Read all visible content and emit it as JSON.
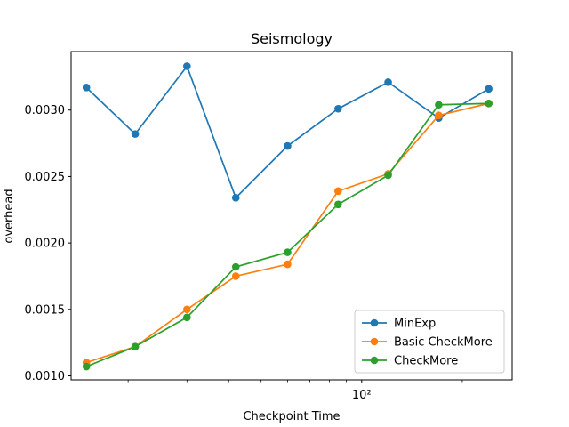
{
  "chart_data": {
    "type": "line",
    "title": "Seismology",
    "xlabel": "Checkpoint Time",
    "ylabel": "overhead",
    "x_scale": "log",
    "xlim": [
      13.5,
      282
    ],
    "ylim": [
      0.00097,
      0.00344
    ],
    "x": [
      15,
      21,
      30,
      42,
      60,
      85,
      120,
      170,
      240
    ],
    "y_ticks": [
      "0.0010",
      "0.0015",
      "0.0020",
      "0.0025",
      "0.0030"
    ],
    "y_tick_values": [
      0.001,
      0.0015,
      0.002,
      0.0025,
      0.003
    ],
    "x_major_ticks": [
      100
    ],
    "x_major_tick_labels": [
      "10²"
    ],
    "x_minor_ticks": [
      20,
      30,
      40,
      50,
      60,
      70,
      80,
      90,
      200
    ],
    "grid": false,
    "legend_position": "lower-right",
    "series": [
      {
        "name": "MinExp",
        "color": "#1f77b4",
        "values": [
          0.00317,
          0.00282,
          0.00333,
          0.00234,
          0.00273,
          0.00301,
          0.00321,
          0.00294,
          0.00316
        ]
      },
      {
        "name": "Basic CheckMore",
        "color": "#ff7f0e",
        "values": [
          0.0011,
          0.00122,
          0.0015,
          0.00175,
          0.00184,
          0.00239,
          0.00252,
          0.00296,
          0.00305
        ]
      },
      {
        "name": "CheckMore",
        "color": "#2ca02c",
        "values": [
          0.00107,
          0.00122,
          0.00144,
          0.00182,
          0.00193,
          0.00229,
          0.00251,
          0.00304,
          0.00305
        ]
      }
    ]
  }
}
